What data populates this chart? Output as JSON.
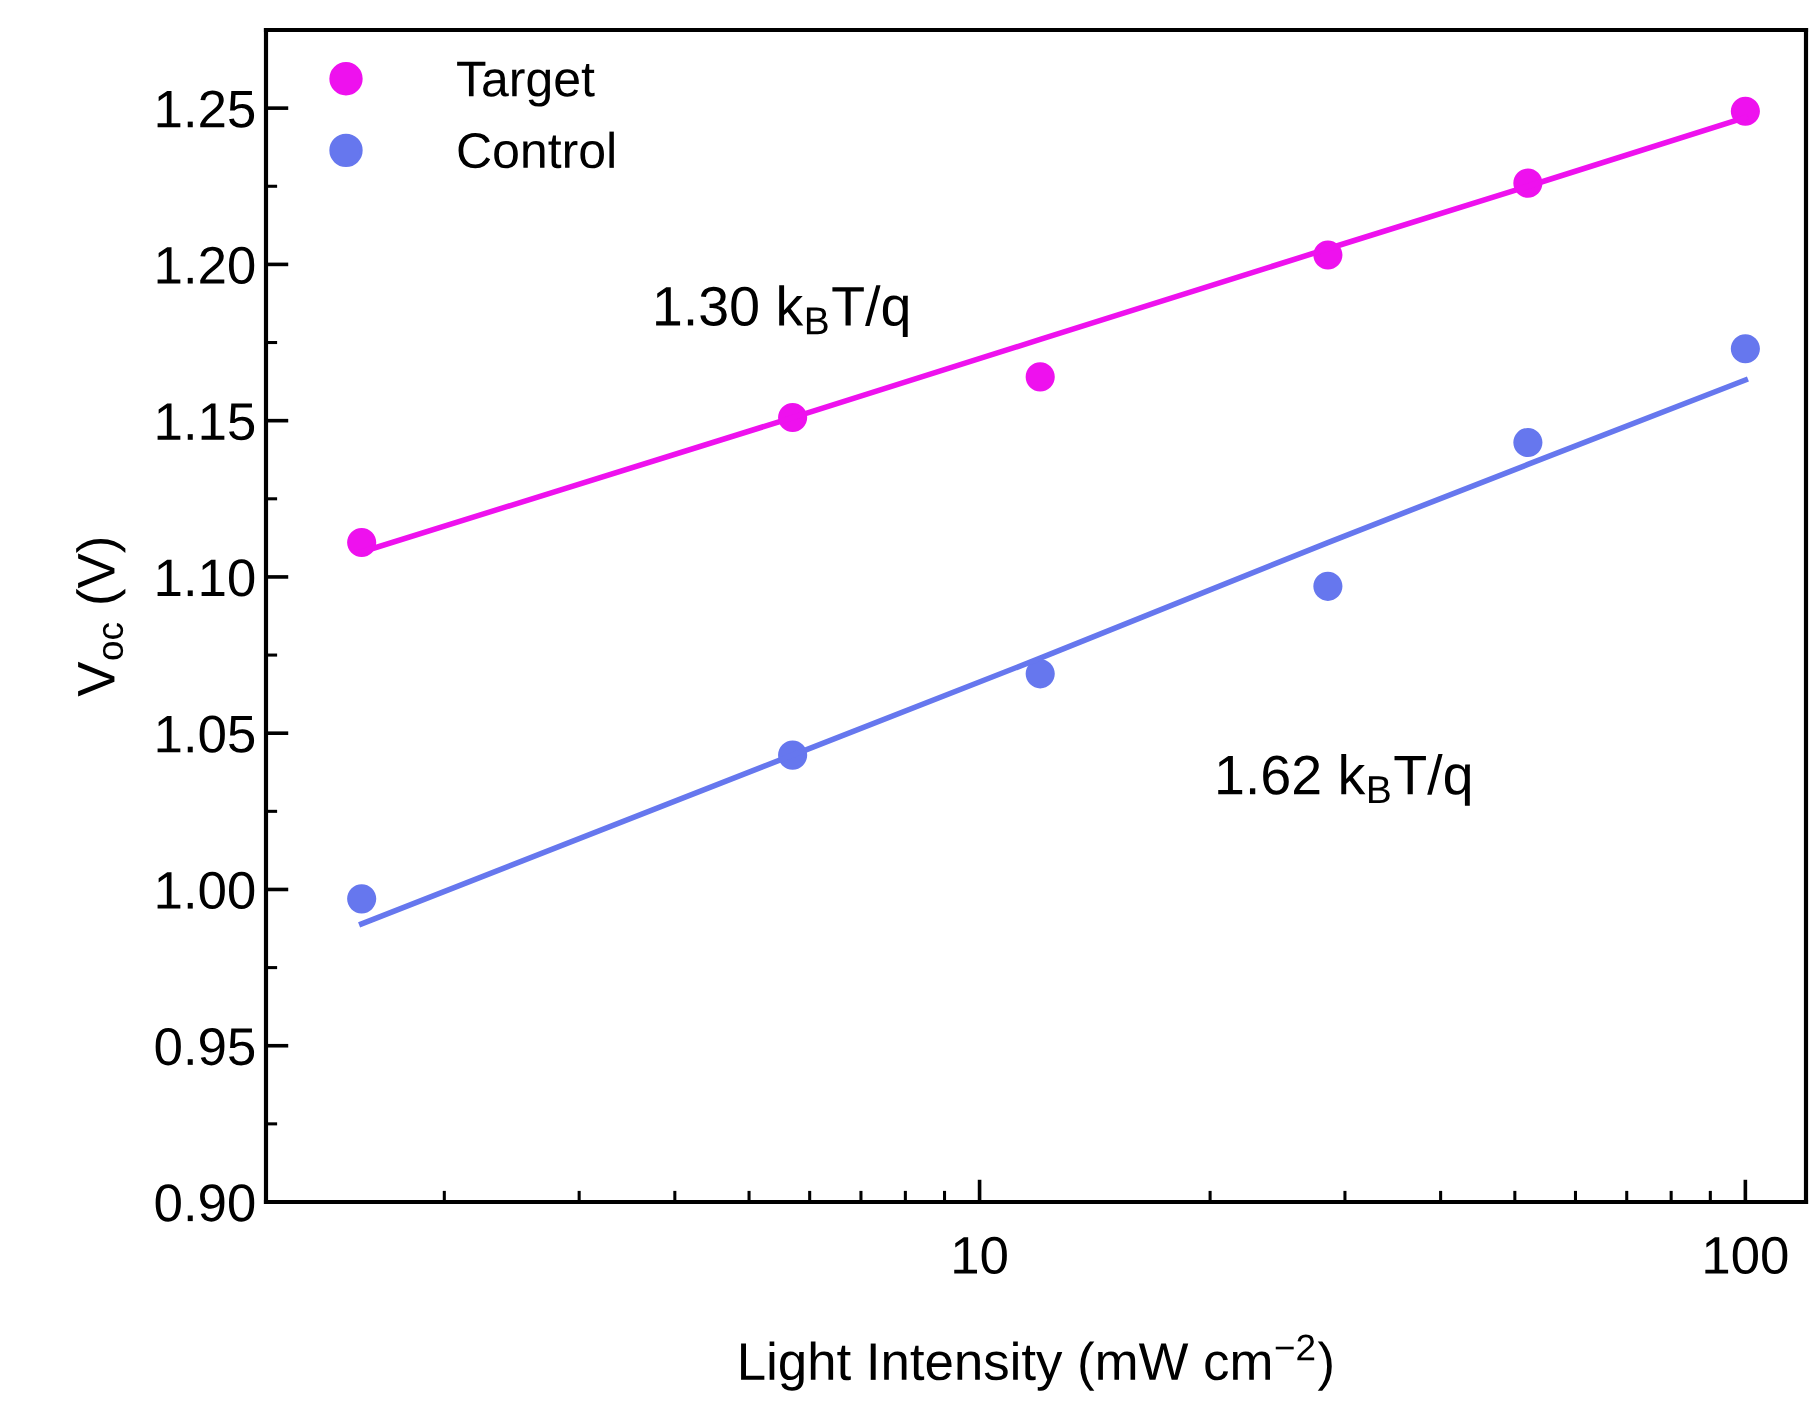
{
  "chart_data": {
    "type": "scatter",
    "xlabel": "Light Intensity (mW cm$^{−2}$)",
    "ylabel": "V$_{oc}$ (V)",
    "x": [
      1.56,
      5.7,
      12,
      28.5,
      52,
      100
    ],
    "series": [
      {
        "name": "Target",
        "color": "#ee11ee",
        "values": [
          1.111,
          1.151,
          1.164,
          1.203,
          1.226,
          1.249
        ]
      },
      {
        "name": "Control",
        "color": "#6677ee",
        "values": [
          0.997,
          1.043,
          1.069,
          1.097,
          1.143,
          1.173
        ]
      },
      {
        "type": "line",
        "marker": "none",
        "color": "#ee11ee",
        "values": [
          1.108,
          1.151,
          1.176,
          1.205,
          1.225,
          1.247
        ]
      },
      {
        "type": "line",
        "marker": "none",
        "color": "#6677ee",
        "values": [
          0.989,
          1.043,
          1.074,
          1.111,
          1.136,
          1.163
        ]
      }
    ],
    "annotations": [
      "1.30 k$_{B}$T/q",
      "1.62 k$_{B}$T/q"
    ],
    "log": "x",
    "xlim": [
      1.17,
      120
    ],
    "xticks": [
      10,
      100
    ],
    "ylim": [
      0.9,
      1.275
    ],
    "yticks": [
      {
        "value": 0.9,
        "label": "0.90"
      },
      0.95,
      {
        "value": 1.0,
        "label": "1.00"
      },
      1.05,
      {
        "value": 1.1,
        "label": "1.10"
      },
      1.15,
      {
        "value": 1.2,
        "label": "1.20"
      },
      1.25
    ],
    "marker": "circle",
    "legend": "top left",
    "grid": false
  }
}
